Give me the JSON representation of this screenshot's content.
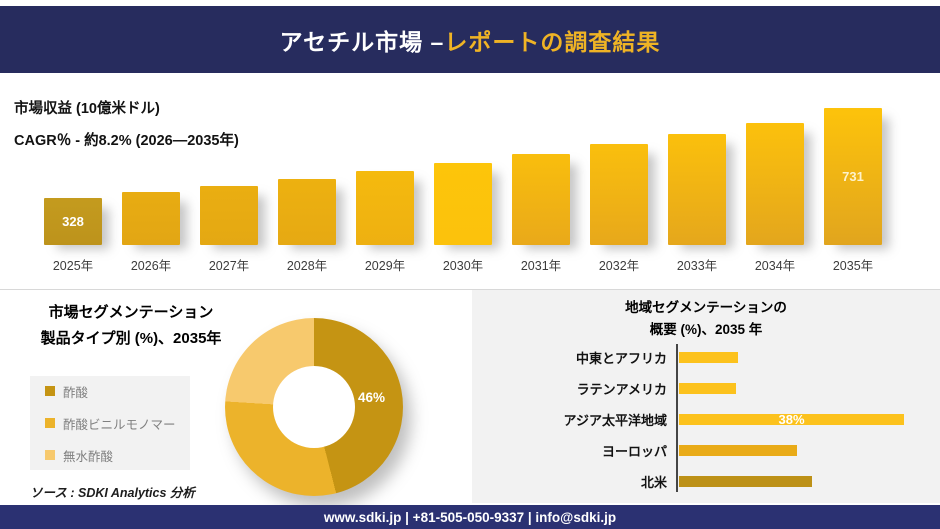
{
  "header": {
    "title_main": "アセチル市場 –",
    "title_sub": "レポートの調査結果"
  },
  "colors": {
    "navy_header": "#272c5e",
    "navy_footer": "#2b3172",
    "accent_gold": "#efb325",
    "panel_gray": "#f2f2f2"
  },
  "chart_data": [
    {
      "type": "bar",
      "title": "市場収益 (10億米ドル)",
      "subtitle": "CAGR％ - 約8.2% (2026―2035年)",
      "xlabel": "",
      "ylabel": "市場収益 (10億米ドル)",
      "categories": [
        "2025年",
        "2026年",
        "2027年",
        "2028年",
        "2029年",
        "2030年",
        "2031年",
        "2032年",
        "2033年",
        "2034年",
        "2035年"
      ],
      "values": [
        328,
        355,
        384,
        415,
        449,
        486,
        526,
        569,
        616,
        666,
        731
      ],
      "value_axis_range": [
        328,
        731
      ],
      "grid": false,
      "bars": [
        {
          "year": "2025年",
          "value": 328,
          "label": "328",
          "label_color": "#ffffff",
          "color": [
            "#c49b1e",
            "#bd931c"
          ]
        },
        {
          "year": "2026年",
          "value": 355,
          "label": "",
          "label_color": "",
          "color": [
            "#e8ac12",
            "#e2a614"
          ]
        },
        {
          "year": "2027年",
          "value": 384,
          "label": "",
          "label_color": "",
          "color": [
            "#eaae11",
            "#e4a813"
          ]
        },
        {
          "year": "2028年",
          "value": 415,
          "label": "",
          "label_color": "",
          "color": [
            "#edb110",
            "#e6a913"
          ]
        },
        {
          "year": "2029年",
          "value": 449,
          "label": "",
          "label_color": "",
          "color": [
            "#f5ba0e",
            "#eeb011"
          ]
        },
        {
          "year": "2030年",
          "value": 486,
          "label": "",
          "label_color": "",
          "color": [
            "#fdc50a",
            "#fcc20c"
          ]
        },
        {
          "year": "2031年",
          "value": 526,
          "label": "",
          "label_color": "",
          "color": [
            "#f9be0d",
            "#e9a91a"
          ]
        },
        {
          "year": "2032年",
          "value": 569,
          "label": "",
          "label_color": "",
          "color": [
            "#fabf0d",
            "#e7a81b"
          ]
        },
        {
          "year": "2033年",
          "value": 616,
          "label": "",
          "label_color": "",
          "color": [
            "#fbc00c",
            "#e5a71c"
          ]
        },
        {
          "year": "2034年",
          "value": 666,
          "label": "",
          "label_color": "",
          "color": [
            "#fcc10c",
            "#e3a61d"
          ]
        },
        {
          "year": "2035年",
          "value": 731,
          "label": "731",
          "label_color": "#fdf2cb",
          "color": [
            "#fdc30b",
            "#e1a51e"
          ]
        }
      ]
    },
    {
      "type": "pie",
      "title_line1": "市場セグメンテーション",
      "title_line2": "製品タイプ別 (%)、2035年",
      "legend_position": "left",
      "slices": [
        {
          "label": "酢酸",
          "value": 46,
          "color": "#c59413",
          "value_label": "46%"
        },
        {
          "label": "酢酸ビニルモノマー",
          "value": 30,
          "color": "#ecb32b",
          "value_label": ""
        },
        {
          "label": "無水酢酸",
          "value": 24,
          "color": "#f7c96d",
          "value_label": ""
        }
      ]
    },
    {
      "type": "bar",
      "orientation": "horizontal",
      "title_line1": "地域セグメンテーションの",
      "title_line2": "概要 (%)、2035 年",
      "xlim": [
        0,
        42
      ],
      "grid": false,
      "items": [
        {
          "label": "中東とアフリカ",
          "value": 10,
          "color": "#fcc21d",
          "value_label": ""
        },
        {
          "label": "ラテンアメリカ",
          "value": 9.7,
          "color": "#fcc21d",
          "value_label": ""
        },
        {
          "label": "アジア太平洋地域",
          "value": 38,
          "color": "#fcc21d",
          "value_label": "38%"
        },
        {
          "label": "ヨーロッパ",
          "value": 20,
          "color": "#e9ab18",
          "value_label": ""
        },
        {
          "label": "北米",
          "value": 22.5,
          "color": "#bd9117",
          "value_label": ""
        }
      ]
    }
  ],
  "source": {
    "text": "ソース : SDKI Analytics 分析"
  },
  "footer": {
    "contact": "www.sdki.jp | +81-505-050-9337 | info@sdki.jp"
  }
}
